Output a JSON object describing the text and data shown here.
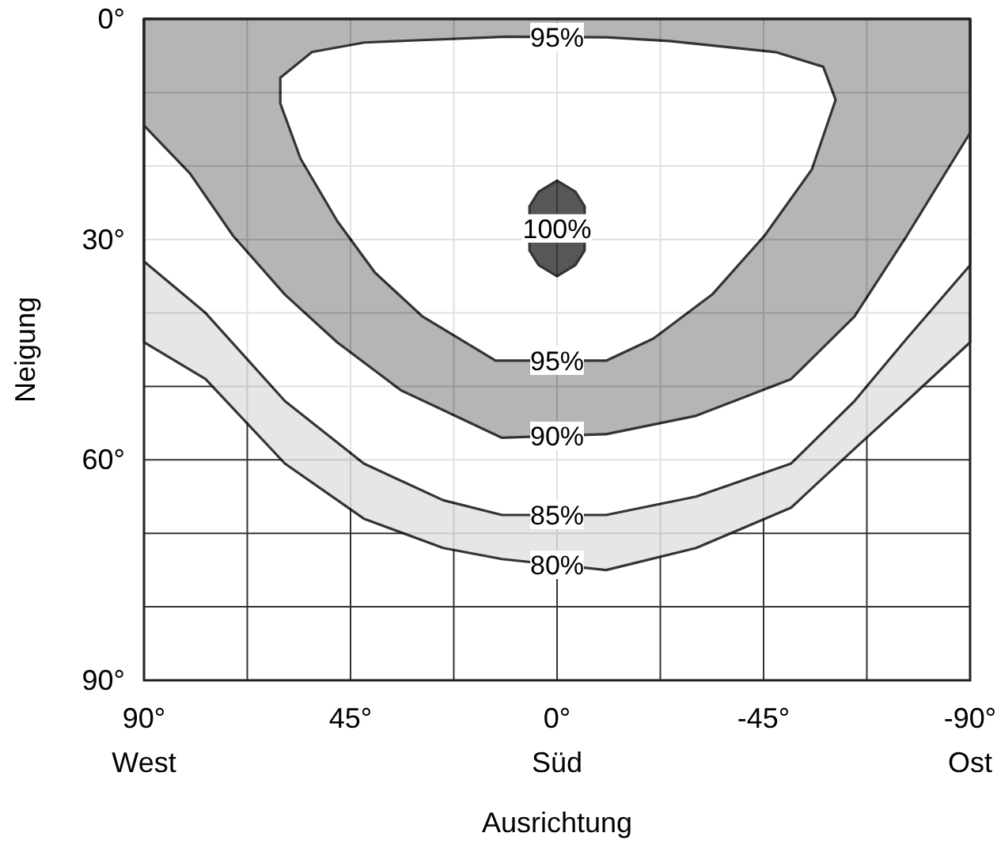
{
  "chart_data": {
    "type": "area",
    "xlabel": "Ausrichtung",
    "ylabel": "Neigung",
    "xlim": [
      90,
      -90
    ],
    "ylim": [
      90,
      0
    ],
    "xticks": [
      {
        "value": 90,
        "label": "90°\nWest"
      },
      {
        "value": 67.5,
        "label": null
      },
      {
        "value": 45,
        "label": "45°"
      },
      {
        "value": 22.5,
        "label": null
      },
      {
        "value": 0,
        "label": "0°\nSüd"
      },
      {
        "value": -22.5,
        "label": null
      },
      {
        "value": -45,
        "label": "-45°"
      },
      {
        "value": -67.5,
        "label": null
      },
      {
        "value": -90,
        "label": "-90°\nOst"
      }
    ],
    "yticks": [
      {
        "value": 0,
        "label": "0°"
      },
      {
        "value": 10,
        "label": null
      },
      {
        "value": 20,
        "label": null
      },
      {
        "value": 30,
        "label": "30°"
      },
      {
        "value": 40,
        "label": null
      },
      {
        "value": 50,
        "label": null
      },
      {
        "value": 60,
        "label": "60°"
      },
      {
        "value": 70,
        "label": null
      },
      {
        "value": 80,
        "label": null
      },
      {
        "value": 90,
        "label": "90°"
      }
    ],
    "grid": true,
    "series": [
      {
        "name": "80%",
        "color": "#e2e2e2",
        "x": [
          90,
          76.6,
          59.3,
          42.1,
          24.8,
          12,
          -10.7,
          -30.3,
          -51,
          -64.8,
          -76.2,
          -90
        ],
        "values": [
          44,
          49,
          60.5,
          68,
          72,
          73.5,
          75,
          72,
          66.5,
          58.5,
          52,
          44
        ]
      },
      {
        "name": "85%",
        "color": "#ffffff",
        "x": [
          90,
          76.6,
          59.3,
          42.1,
          24.8,
          12,
          -10.7,
          -30.3,
          -51,
          -64.8,
          -76.2,
          -90
        ],
        "values": [
          33,
          40,
          52,
          60.5,
          65.5,
          67.5,
          67.5,
          65,
          60.5,
          52,
          43.5,
          33.5
        ]
      },
      {
        "name": "90%",
        "color": "#a9a9a9",
        "x": [
          90,
          80,
          70.6,
          59.3,
          47.9,
          34.1,
          12,
          -10.7,
          -30.3,
          -51,
          -64.8,
          -76.2,
          -90
        ],
        "values": [
          14.5,
          21,
          29.5,
          37.5,
          44,
          50.5,
          57,
          56.5,
          54,
          49,
          40.5,
          29.5,
          15.5
        ]
      },
      {
        "name": "95%",
        "color": "#ffffff",
        "x": [
          11,
          42,
          53.4,
          60.3,
          60.3,
          55.9,
          47.9,
          39.7,
          29.3,
          13.4,
          -10.7,
          -21,
          -33.8,
          -45.2,
          -55.5,
          -60.7,
          -58,
          -47.6,
          -24.5,
          -10.7
        ],
        "values": [
          2.4,
          3.2,
          4.5,
          8,
          11.5,
          19,
          27.5,
          34.5,
          40.5,
          46.5,
          46.5,
          43.5,
          37.5,
          29.5,
          20.5,
          11,
          6.5,
          4.5,
          3,
          2.5
        ]
      },
      {
        "name": "100%",
        "color": "#3a3a3a",
        "x": [
          0,
          4,
          6,
          6,
          4,
          0,
          -4,
          -6,
          -6,
          -4
        ],
        "values": [
          22,
          23.5,
          25.5,
          31.5,
          33.5,
          35,
          33.5,
          31.5,
          25.5,
          23.5
        ]
      }
    ]
  }
}
